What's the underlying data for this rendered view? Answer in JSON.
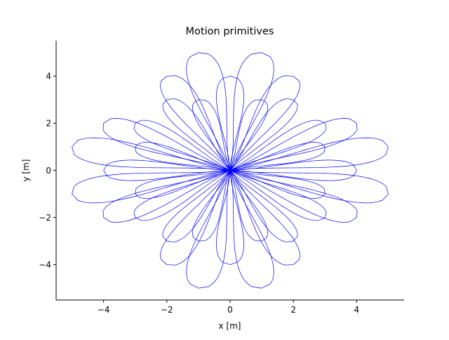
{
  "chart_data": {
    "type": "line",
    "title": "Motion primitives",
    "xlabel": "x [m]",
    "ylabel": "y [m]",
    "xlim": [
      -5.5,
      5.5
    ],
    "ylim": [
      -5.5,
      5.5
    ],
    "x_ticks": [
      -4,
      -2,
      0,
      2,
      4
    ],
    "y_ticks": [
      -4,
      -2,
      0,
      2,
      4
    ],
    "x_tick_labels": [
      "−4",
      "−2",
      "0",
      "2",
      "4"
    ],
    "y_tick_labels": [
      "−4",
      "−2",
      "0",
      "2",
      "4"
    ],
    "grid": false,
    "legend": false,
    "line_color": "#0000ff",
    "primitive_endpoints": [
      [
        5,
        1
      ],
      [
        5,
        -1
      ],
      [
        -5,
        1
      ],
      [
        -5,
        -1
      ],
      [
        1,
        5
      ],
      [
        -1,
        5
      ],
      [
        1,
        -5
      ],
      [
        -1,
        -5
      ],
      [
        4,
        2
      ],
      [
        4,
        -2
      ],
      [
        -4,
        2
      ],
      [
        -4,
        -2
      ],
      [
        2,
        4
      ],
      [
        -2,
        4
      ],
      [
        2,
        -4
      ],
      [
        -2,
        -4
      ],
      [
        3,
        2
      ],
      [
        3,
        -2
      ],
      [
        -3,
        2
      ],
      [
        -3,
        -2
      ],
      [
        2,
        3
      ],
      [
        -2,
        3
      ],
      [
        2,
        -3
      ],
      [
        -2,
        -3
      ],
      [
        3,
        1
      ],
      [
        3,
        -1
      ],
      [
        -3,
        1
      ],
      [
        -3,
        -1
      ],
      [
        1,
        3
      ],
      [
        -1,
        3
      ],
      [
        1,
        -3
      ],
      [
        -1,
        -3
      ],
      [
        4,
        0
      ],
      [
        -4,
        0
      ],
      [
        0,
        4
      ],
      [
        0,
        -4
      ]
    ]
  }
}
